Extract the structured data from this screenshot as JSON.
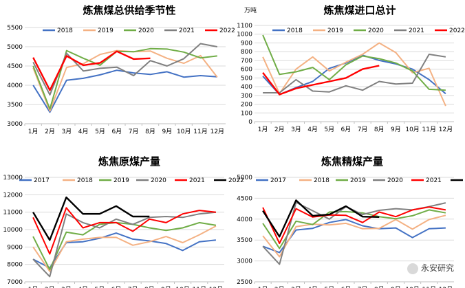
{
  "watermark": {
    "text": "永安研究",
    "icon": "wechat-icon"
  },
  "chart_data": [
    {
      "type": "line",
      "title": "炼焦煤总供给季节性",
      "unit_label": "",
      "categories": [
        "1月",
        "2月",
        "3月",
        "4月",
        "5月",
        "6月",
        "7月",
        "8月",
        "9月",
        "10月",
        "11月",
        "12月"
      ],
      "ylim": [
        3000,
        5500
      ],
      "yticks": [
        3000,
        3500,
        4000,
        4500,
        5000,
        5500
      ],
      "grid": true,
      "legend": "top",
      "series": [
        {
          "name": "2018",
          "color": "#4472C4",
          "values": [
            4000,
            3300,
            4130,
            4180,
            4270,
            4390,
            4320,
            4280,
            4350,
            4210,
            4250,
            4220
          ]
        },
        {
          "name": "2019",
          "color": "#F4B183",
          "values": [
            4450,
            3330,
            4460,
            4560,
            4800,
            4900,
            4870,
            4890,
            4700,
            4570,
            4770,
            4210
          ]
        },
        {
          "name": "2020",
          "color": "#70AD47",
          "values": [
            4500,
            3380,
            4900,
            4700,
            4520,
            4880,
            4870,
            4950,
            4940,
            4860,
            4710,
            4760
          ]
        },
        {
          "name": "2021",
          "color": "#808080",
          "values": [
            4600,
            3750,
            4830,
            4370,
            4440,
            4470,
            4250,
            4640,
            4500,
            4690,
            5080,
            5000
          ]
        },
        {
          "name": "2022",
          "color": "#FF0000",
          "values": [
            4720,
            3870,
            4760,
            4520,
            4580,
            4880,
            4680,
            4700,
            null,
            null,
            null,
            null
          ]
        }
      ]
    },
    {
      "type": "line",
      "title": "炼焦煤进口总计",
      "unit_label": "万吨",
      "categories": [
        "1月",
        "2月",
        "3月",
        "4月",
        "5月",
        "6月",
        "7月",
        "8月",
        "9月",
        "10月",
        "11月",
        "12月"
      ],
      "ylim": [
        0,
        1100
      ],
      "yticks": [
        0,
        100,
        200,
        300,
        400,
        500,
        600,
        700,
        800,
        900,
        1000,
        1100
      ],
      "grid": true,
      "legend": "top",
      "series": [
        {
          "name": "2018",
          "color": "#4472C4",
          "values": [
            520,
            310,
            390,
            460,
            610,
            670,
            760,
            700,
            660,
            600,
            480,
            320
          ]
        },
        {
          "name": "2019",
          "color": "#F4B183",
          "values": [
            740,
            320,
            600,
            740,
            580,
            680,
            770,
            900,
            790,
            560,
            610,
            180
          ]
        },
        {
          "name": "2020",
          "color": "#70AD47",
          "values": [
            990,
            540,
            570,
            620,
            480,
            650,
            750,
            720,
            670,
            580,
            370,
            360
          ]
        },
        {
          "name": "2021",
          "color": "#808080",
          "values": [
            330,
            330,
            480,
            350,
            340,
            410,
            360,
            460,
            430,
            440,
            770,
            740
          ]
        },
        {
          "name": "2022",
          "color": "#FF0000",
          "values": [
            560,
            310,
            380,
            420,
            460,
            500,
            600,
            640,
            null,
            null,
            null,
            null
          ]
        }
      ]
    },
    {
      "type": "line",
      "title": "炼焦原煤产量",
      "unit_label": "",
      "categories": [
        "1月",
        "2月",
        "3月",
        "4月",
        "5月",
        "6月",
        "7月",
        "8月",
        "9月",
        "10月",
        "11月",
        "12月"
      ],
      "ylim": [
        7000,
        13000
      ],
      "yticks": [
        7000,
        8000,
        9000,
        10000,
        11000,
        12000,
        13000
      ],
      "grid": true,
      "legend": "top",
      "series": [
        {
          "name": "2017",
          "color": "#4472C4",
          "values": [
            8300,
            7800,
            9250,
            9300,
            9500,
            9800,
            9450,
            9350,
            9200,
            8800,
            9300,
            9400
          ]
        },
        {
          "name": "2018",
          "color": "#F4B183",
          "values": [
            9000,
            7600,
            9300,
            9450,
            9550,
            9550,
            9100,
            9300,
            9600,
            9250,
            9700,
            10200
          ]
        },
        {
          "name": "2019",
          "color": "#70AD47",
          "values": [
            9600,
            7700,
            9850,
            9700,
            10300,
            10400,
            10300,
            10100,
            9950,
            10100,
            10400,
            10250
          ]
        },
        {
          "name": "2020",
          "color": "#808080",
          "values": [
            8300,
            7300,
            10900,
            10400,
            10100,
            10600,
            10300,
            10700,
            10750,
            10700,
            10900,
            11000
          ]
        },
        {
          "name": "2021",
          "color": "#FF0000",
          "values": [
            10700,
            8600,
            11250,
            10100,
            10400,
            10400,
            9900,
            10600,
            10400,
            10900,
            11100,
            11000
          ]
        },
        {
          "name": "2022",
          "color": "#000000",
          "values": [
            11000,
            9400,
            11850,
            10900,
            10900,
            11350,
            10750,
            10750,
            null,
            null,
            null,
            null
          ]
        }
      ]
    },
    {
      "type": "line",
      "title": "炼焦精煤产量",
      "unit_label": "",
      "categories": [
        "1月",
        "2月",
        "3月",
        "4月",
        "5月",
        "6月",
        "7月",
        "8月",
        "9月",
        "10月",
        "11月",
        "12月"
      ],
      "ylim": [
        2500,
        5000
      ],
      "yticks": [
        2500,
        3000,
        3500,
        4000,
        4500,
        5000
      ],
      "grid": true,
      "legend": "top",
      "series": [
        {
          "name": "2017",
          "color": "#4472C4",
          "values": [
            3350,
            3200,
            3740,
            3780,
            3920,
            3990,
            3840,
            3770,
            3790,
            3560,
            3770,
            3790
          ]
        },
        {
          "name": "2018",
          "color": "#F4B183",
          "values": [
            3600,
            3100,
            3820,
            3880,
            3860,
            3900,
            3770,
            3780,
            3990,
            3760,
            3990,
            4090
          ]
        },
        {
          "name": "2019",
          "color": "#70AD47",
          "values": [
            3900,
            3300,
            3950,
            3870,
            4170,
            4180,
            4150,
            4060,
            4010,
            4080,
            4220,
            4150
          ]
        },
        {
          "name": "2020",
          "color": "#808080",
          "values": [
            3350,
            2920,
            4400,
            4200,
            4000,
            4300,
            4110,
            4210,
            4250,
            4220,
            4300,
            4390
          ]
        },
        {
          "name": "2021",
          "color": "#FF0000",
          "values": [
            4280,
            3420,
            4250,
            4050,
            4100,
            4090,
            3920,
            4170,
            4060,
            4220,
            4290,
            4220
          ]
        },
        {
          "name": "2022",
          "color": "#000000",
          "values": [
            4200,
            3580,
            4450,
            4080,
            4110,
            4310,
            4060,
            4050,
            null,
            null,
            null,
            null
          ]
        }
      ]
    }
  ]
}
